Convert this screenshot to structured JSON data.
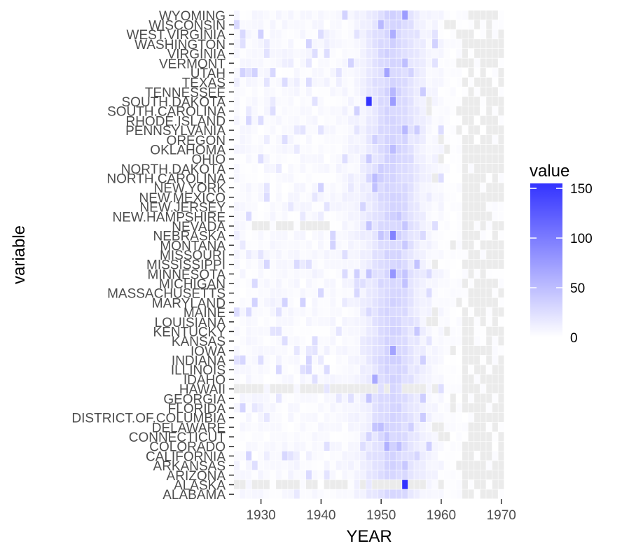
{
  "chart_data": {
    "type": "heatmap",
    "title": "",
    "xlabel": "YEAR",
    "ylabel": "variable",
    "xlim": [
      1925.5,
      1970.5
    ],
    "x_ticks": [
      1930,
      1940,
      1950,
      1960,
      1970
    ],
    "x": [
      1926,
      1927,
      1928,
      1929,
      1930,
      1931,
      1932,
      1933,
      1934,
      1935,
      1936,
      1937,
      1938,
      1939,
      1940,
      1941,
      1942,
      1943,
      1944,
      1945,
      1946,
      1947,
      1948,
      1949,
      1950,
      1951,
      1952,
      1953,
      1954,
      1955,
      1956,
      1957,
      1958,
      1959,
      1960,
      1961,
      1962,
      1963,
      1964,
      1965,
      1966,
      1967,
      1968,
      1969,
      1970
    ],
    "categories": [
      "ALABAMA",
      "ALASKA",
      "ARIZONA",
      "ARKANSAS",
      "CALIFORNIA",
      "COLORADO",
      "CONNECTICUT",
      "DELAWARE",
      "DISTRICT.OF.COLUMBIA",
      "FLORIDA",
      "GEORGIA",
      "HAWAII",
      "IDAHO",
      "ILLINOIS",
      "INDIANA",
      "IOWA",
      "KANSAS",
      "KENTUCKY",
      "LOUISIANA",
      "MAINE",
      "MARYLAND",
      "MASSACHUSETTS",
      "MICHIGAN",
      "MINNESOTA",
      "MISSISSIPPI",
      "MISSOURI",
      "MONTANA",
      "NEBRASKA",
      "NEVADA",
      "NEW.HAMPSHIRE",
      "NEW.JERSEY",
      "NEW.MEXICO",
      "NEW.YORK",
      "NORTH.CAROLINA",
      "NORTH.DAKOTA",
      "OHIO",
      "OKLAHOMA",
      "OREGON",
      "PENNSYLVANIA",
      "RHODE.ISLAND",
      "SOUTH.CAROLINA",
      "SOUTH.DAKOTA",
      "TENNESSEE",
      "TEXAS",
      "UTAH",
      "VERMONT",
      "VIRGINIA",
      "WASHINGTON",
      "WEST.VIRGINIA",
      "WISCONSIN",
      "WYOMING"
    ],
    "legend": {
      "title": "value",
      "placement": "right",
      "range": [
        0,
        155
      ],
      "ticks": [
        0,
        50,
        100,
        150
      ],
      "low_color": "#ffffff",
      "high_color": "#3333ff"
    },
    "highlights": [
      {
        "category": "SOUTH.DAKOTA",
        "x": 1948,
        "value": 155
      },
      {
        "category": "ALASKA",
        "x": 1954,
        "value": 155
      },
      {
        "category": "NEBRASKA",
        "x": 1952,
        "value": 95
      },
      {
        "category": "UTAH",
        "x": 1951,
        "value": 70
      },
      {
        "category": "SOUTH.DAKOTA",
        "x": 1952,
        "value": 75
      },
      {
        "category": "MINNESOTA",
        "x": 1952,
        "value": 80
      },
      {
        "category": "WYOMING",
        "x": 1954,
        "value": 75
      },
      {
        "category": "IOWA",
        "x": 1952,
        "value": 70
      },
      {
        "category": "IDAHO",
        "x": 1949,
        "value": 65
      },
      {
        "category": "COLORADO",
        "x": 1951,
        "value": 60
      }
    ],
    "na_color": "#ebebeb",
    "grid": false
  }
}
